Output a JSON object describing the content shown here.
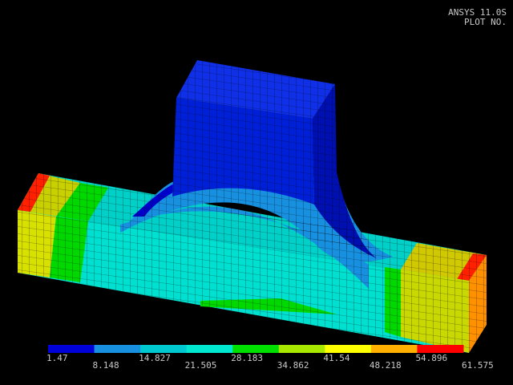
{
  "header": {
    "product": "ANSYS 11.0S",
    "plot": "PLOT NO."
  },
  "legend": {
    "levels": [
      1.47,
      8.148,
      14.827,
      21.505,
      28.183,
      34.862,
      41.54,
      48.218,
      54.896,
      61.575
    ],
    "colors": [
      "#0000d8",
      "#1890e0",
      "#00c8d0",
      "#00e8d0",
      "#00e000",
      "#a8e800",
      "#ffff00",
      "#ffb000",
      "#ff0000"
    ]
  }
}
